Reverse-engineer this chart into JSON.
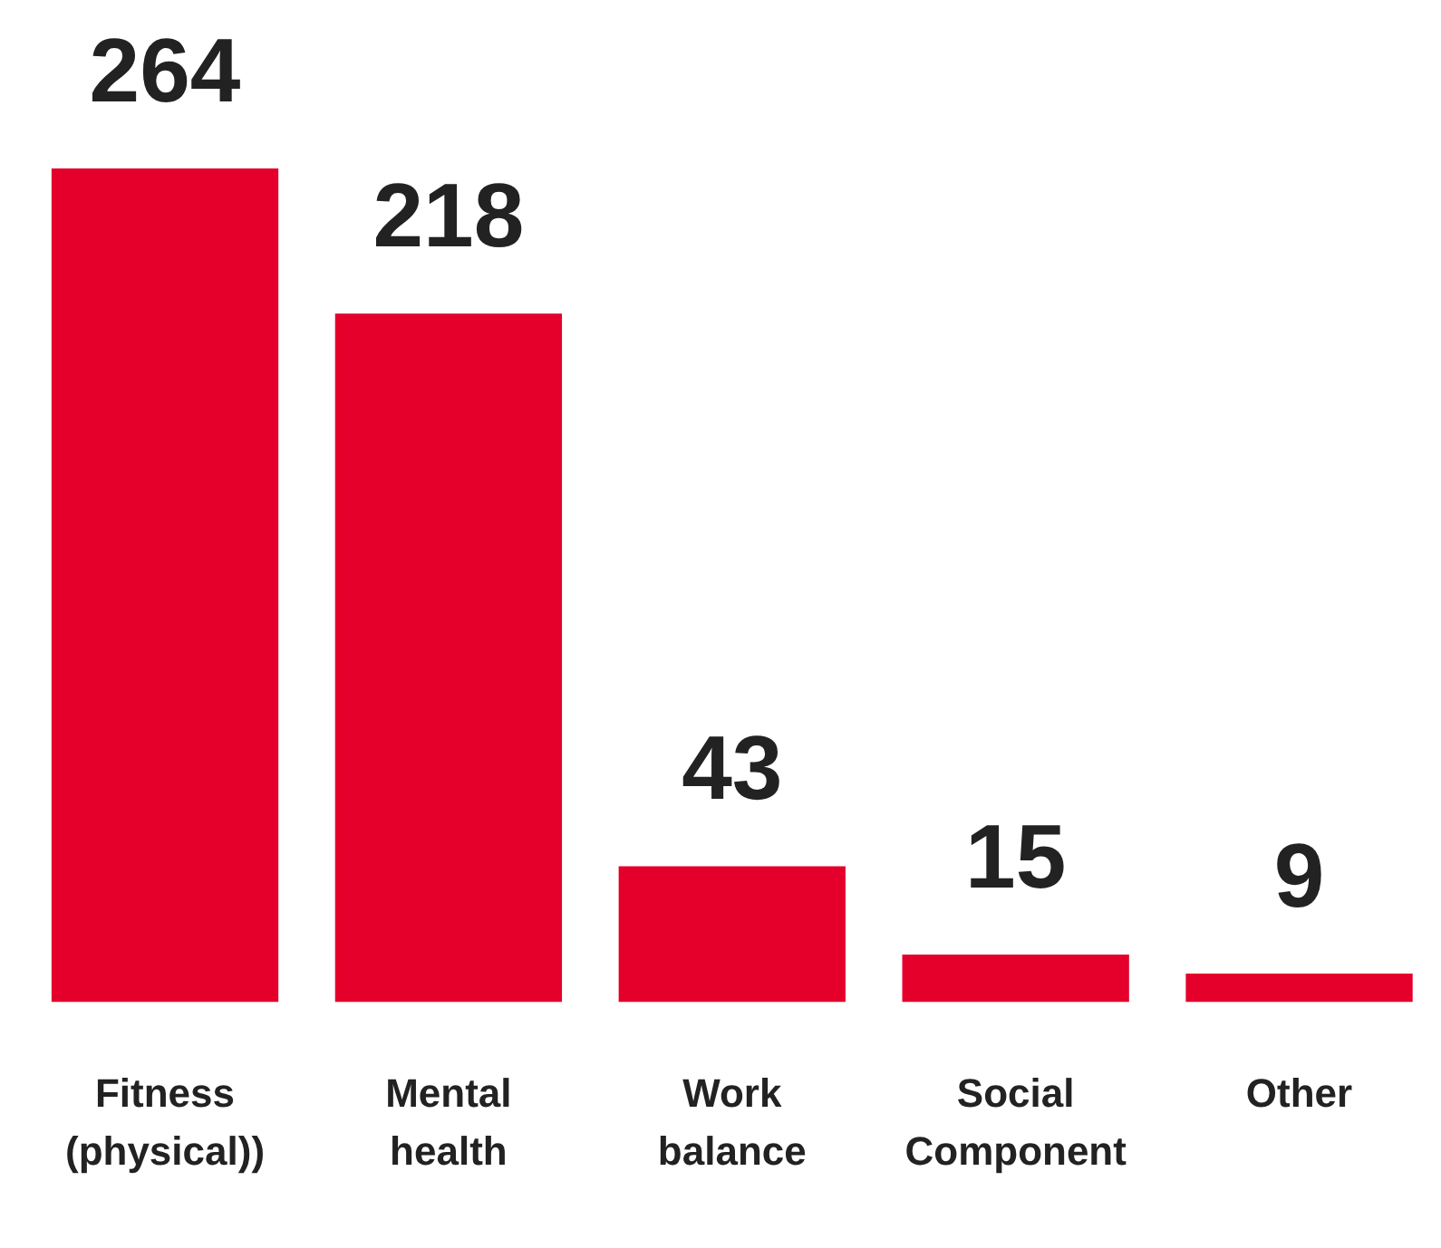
{
  "chart_data": {
    "type": "bar",
    "categories": [
      "Fitness (physical))",
      "Mental health",
      "Work balance",
      "Social Component",
      "Other"
    ],
    "values": [
      264,
      218,
      43,
      15,
      9
    ],
    "color": "#e4002b",
    "ylim": [
      0,
      264
    ],
    "data_labels": true,
    "grid": false,
    "legend": false,
    "tick_labels": "x"
  }
}
